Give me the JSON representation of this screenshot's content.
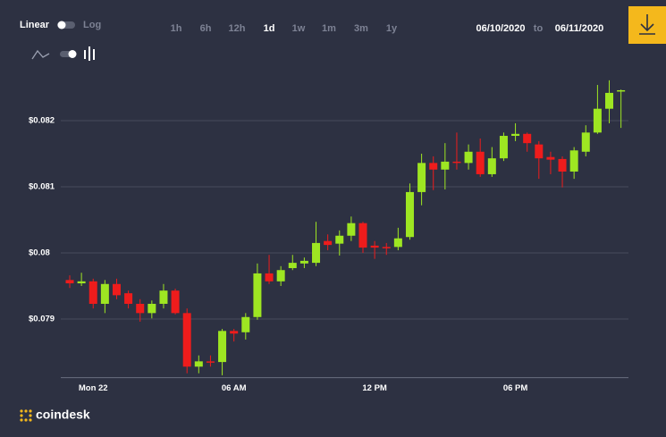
{
  "toolbar": {
    "scale_options": [
      "Linear",
      "Log"
    ],
    "ranges": [
      "1h",
      "6h",
      "12h",
      "1d",
      "1w",
      "1m",
      "3m",
      "1y"
    ],
    "selected_range": "1d",
    "date_from": "06/10/2020",
    "date_connector": "to",
    "date_to": "06/11/2020"
  },
  "brand": "coindesk",
  "chart_data": {
    "type": "candlestick",
    "categories": [
      null,
      null,
      "Mon 22",
      null,
      null,
      null,
      null,
      null,
      null,
      null,
      null,
      null,
      null,
      null,
      "06 AM",
      null,
      null,
      null,
      null,
      null,
      null,
      null,
      null,
      null,
      null,
      null,
      "12 PM",
      null,
      null,
      null,
      null,
      null,
      null,
      null,
      null,
      null,
      null,
      null,
      "06 PM",
      null,
      null,
      null,
      null,
      null,
      null,
      null,
      null,
      null
    ],
    "open": [
      0.07959,
      0.07954,
      0.07957,
      0.07923,
      0.07953,
      0.07939,
      0.07923,
      0.07909,
      0.07923,
      0.07943,
      0.07909,
      0.07828,
      0.07836,
      0.07835,
      0.07882,
      0.0788,
      0.07903,
      0.07969,
      0.07957,
      0.07977,
      0.07984,
      0.07985,
      0.08018,
      0.08014,
      0.08026,
      0.08045,
      0.08011,
      0.08009,
      0.08009,
      0.08024,
      0.08092,
      0.08136,
      0.08126,
      0.08138,
      0.08136,
      0.08153,
      0.08119,
      0.08143,
      0.08177,
      0.0818,
      0.08164,
      0.08145,
      0.08142,
      0.08123,
      0.08153,
      0.08182,
      0.08218,
      0.08245
    ],
    "high": [
      0.07966,
      0.0797,
      0.07961,
      0.07959,
      0.07961,
      0.07943,
      0.0793,
      0.07928,
      0.07953,
      0.07946,
      0.07916,
      0.07845,
      0.07845,
      0.07885,
      0.07885,
      0.07909,
      0.07984,
      0.07997,
      0.0798,
      0.07997,
      0.07993,
      0.08047,
      0.08028,
      0.08034,
      0.08055,
      0.08047,
      0.08018,
      0.08015,
      0.08038,
      0.08105,
      0.0815,
      0.08146,
      0.08166,
      0.08182,
      0.08164,
      0.08173,
      0.0816,
      0.08182,
      0.08196,
      0.08182,
      0.08169,
      0.08153,
      0.08146,
      0.0816,
      0.08193,
      0.08254,
      0.08261,
      0.08247
    ],
    "low": [
      0.07947,
      0.0795,
      0.07916,
      0.07909,
      0.0793,
      0.07916,
      0.07896,
      0.07901,
      0.07916,
      0.07907,
      0.07818,
      0.07818,
      0.07828,
      0.07815,
      0.07866,
      0.07869,
      0.07899,
      0.07953,
      0.0795,
      0.07974,
      0.07977,
      0.0798,
      0.08004,
      0.07996,
      0.08018,
      0.08,
      0.07991,
      0.07997,
      0.08004,
      0.0802,
      0.08072,
      0.08095,
      0.08096,
      0.08126,
      0.08126,
      0.08115,
      0.08115,
      0.08139,
      0.08169,
      0.08153,
      0.08112,
      0.08119,
      0.08099,
      0.08112,
      0.08146,
      0.0818,
      0.08196,
      0.08189
    ],
    "close": [
      0.07954,
      0.07957,
      0.07923,
      0.07953,
      0.07936,
      0.07923,
      0.07909,
      0.07923,
      0.07943,
      0.07909,
      0.07828,
      0.07836,
      0.07834,
      0.07882,
      0.07878,
      0.07903,
      0.07969,
      0.07957,
      0.07974,
      0.07985,
      0.07988,
      0.08015,
      0.08012,
      0.08026,
      0.08045,
      0.08008,
      0.08008,
      0.08007,
      0.08022,
      0.08092,
      0.08136,
      0.08126,
      0.08138,
      0.08136,
      0.08153,
      0.08119,
      0.08143,
      0.08177,
      0.0818,
      0.08166,
      0.08143,
      0.08141,
      0.08123,
      0.08155,
      0.08182,
      0.08218,
      0.08242,
      0.08246
    ],
    "up_color": "#9ee622",
    "down_color": "#ee1c1c",
    "ylim": [
      0.0781,
      0.0828
    ],
    "yticks": [
      {
        "value": 0.079,
        "label": "$0.079"
      },
      {
        "value": 0.08,
        "label": "$0.08"
      },
      {
        "value": 0.081,
        "label": "$0.081"
      },
      {
        "value": 0.082,
        "label": "$0.082"
      }
    ],
    "grid": true
  }
}
